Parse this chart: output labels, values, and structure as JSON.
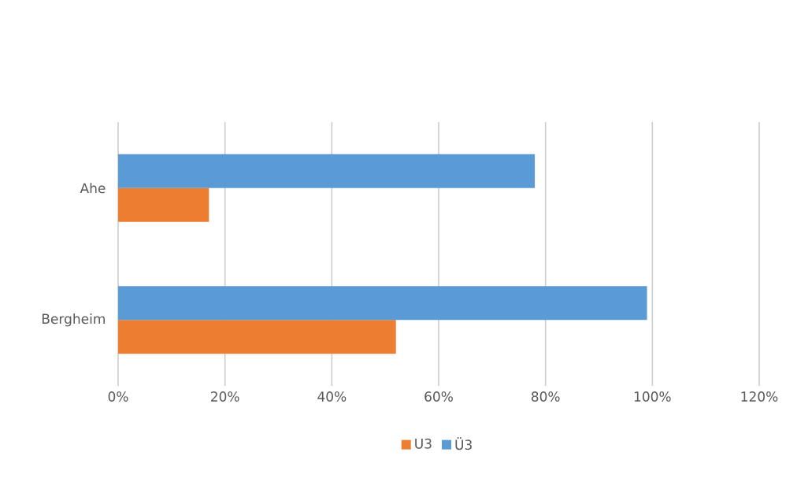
{
  "chart_data": {
    "type": "bar",
    "orientation": "horizontal",
    "categories": [
      "Ahe",
      "Bergheim"
    ],
    "series": [
      {
        "name": "U3",
        "color": "#ed7d31",
        "values": [
          0.17,
          0.52
        ]
      },
      {
        "name": "Ü3",
        "color": "#5b9bd5",
        "values": [
          0.78,
          0.99
        ]
      }
    ],
    "xlim": [
      0,
      1.2
    ],
    "xticks": [
      {
        "value": 0,
        "label": "0%"
      },
      {
        "value": 0.2,
        "label": "20%"
      },
      {
        "value": 0.4,
        "label": "40%"
      },
      {
        "value": 0.6,
        "label": "60%"
      },
      {
        "value": 0.8,
        "label": "80%"
      },
      {
        "value": 1.0,
        "label": "100%"
      },
      {
        "value": 1.2,
        "label": "120%"
      }
    ],
    "grid": "x",
    "legend": "bottom"
  }
}
